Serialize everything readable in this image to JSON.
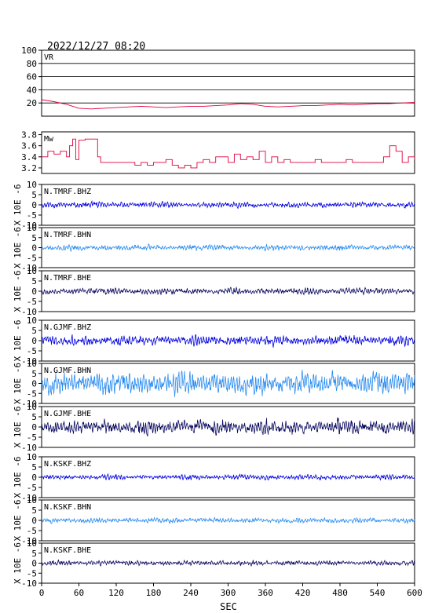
{
  "header": {
    "timestamp": "2022/12/27 08:20"
  },
  "chart_data": {
    "type": "line",
    "xlabel": "SEC",
    "xlim": [
      0,
      600
    ],
    "xticks": [
      "0",
      "60",
      "120",
      "180",
      "240",
      "300",
      "360",
      "420",
      "480",
      "540",
      "600"
    ],
    "panels": [
      {
        "label": "VR",
        "ylim": [
          0,
          100
        ],
        "yticks": [
          "100",
          "80",
          "60",
          "40",
          "20"
        ],
        "color": "#e0003c",
        "grid": true,
        "series": [
          {
            "x": [
              0,
              20,
              40,
              60,
              80,
              100,
              120,
              140,
              160,
              180,
              200,
              220,
              240,
              260,
              280,
              300,
              320,
              340,
              360,
              380,
              400,
              420,
              440,
              460,
              480,
              500,
              520,
              540,
              560,
              580,
              600
            ],
            "y": [
              25,
              22,
              18,
              12,
              11,
              12,
              13,
              14,
              15,
              14,
              13,
              14,
              15,
              15,
              16,
              17,
              19,
              18,
              15,
              14,
              15,
              16,
              16,
              17,
              18,
              17,
              18,
              19,
              19,
              20,
              21
            ]
          }
        ]
      },
      {
        "label": "Mw",
        "ylim": [
          3.1,
          3.85
        ],
        "yticks": [
          "3.8",
          "3.6",
          "3.4",
          "3.2"
        ],
        "color": "#e0003c",
        "grid": false,
        "series": [
          {
            "x": [
              0,
              10,
              20,
              30,
              40,
              45,
              50,
              55,
              60,
              70,
              80,
              90,
              95,
              100,
              110,
              120,
              125,
              130,
              140,
              150,
              160,
              170,
              180,
              190,
              200,
              210,
              220,
              230,
              240,
              250,
              260,
              270,
              280,
              290,
              300,
              310,
              320,
              330,
              340,
              350,
              360,
              370,
              380,
              390,
              400,
              410,
              420,
              430,
              440,
              450,
              460,
              470,
              480,
              490,
              500,
              510,
              520,
              530,
              540,
              550,
              560,
              570,
              580,
              590,
              600
            ],
            "y": [
              3.4,
              3.5,
              3.45,
              3.5,
              3.4,
              3.6,
              3.72,
              3.35,
              3.7,
              3.72,
              3.72,
              3.4,
              3.3,
              3.3,
              3.3,
              3.3,
              3.3,
              3.3,
              3.3,
              3.25,
              3.3,
              3.25,
              3.3,
              3.3,
              3.35,
              3.25,
              3.2,
              3.25,
              3.2,
              3.3,
              3.35,
              3.3,
              3.4,
              3.4,
              3.3,
              3.45,
              3.35,
              3.4,
              3.35,
              3.5,
              3.3,
              3.4,
              3.3,
              3.35,
              3.3,
              3.3,
              3.3,
              3.3,
              3.35,
              3.3,
              3.3,
              3.3,
              3.3,
              3.35,
              3.3,
              3.3,
              3.3,
              3.3,
              3.3,
              3.4,
              3.6,
              3.5,
              3.3,
              3.4,
              3.35
            ]
          }
        ]
      },
      {
        "label": "N.TMRF.BHZ",
        "ylim": [
          -10,
          10
        ],
        "yticks": [
          "10",
          "5",
          "0",
          "-5",
          "-10"
        ],
        "ylabel": "X 10E -6",
        "color": "#0000e0",
        "amplitude": 1.0,
        "seed": 11
      },
      {
        "label": "N.TMRF.BHN",
        "ylim": [
          -10,
          10
        ],
        "yticks": [
          "10",
          "5",
          "0",
          "-5",
          "-10"
        ],
        "ylabel": "X 10E -6",
        "color": "#2a8cf0",
        "amplitude": 1.0,
        "seed": 23
      },
      {
        "label": "N.TMRF.BHE",
        "ylim": [
          -10,
          10
        ],
        "yticks": [
          "10",
          "5",
          "0",
          "-5",
          "-10"
        ],
        "ylabel": "X 10E -6",
        "color": "#0a0a60",
        "amplitude": 1.1,
        "seed": 37
      },
      {
        "label": "N.GJMF.BHZ",
        "ylim": [
          -10,
          10
        ],
        "yticks": [
          "10",
          "5",
          "0",
          "-5",
          "-10"
        ],
        "ylabel": "X 10E -6",
        "color": "#0000e0",
        "amplitude": 1.8,
        "seed": 41
      },
      {
        "label": "N.GJMF.BHN",
        "ylim": [
          -10,
          10
        ],
        "yticks": [
          "10",
          "5",
          "0",
          "-5",
          "-10"
        ],
        "ylabel": "X 10E -6",
        "color": "#2a8cf0",
        "amplitude": 4.0,
        "seed": 53
      },
      {
        "label": "N.GJMF.BHE",
        "ylim": [
          -10,
          10
        ],
        "yticks": [
          "10",
          "5",
          "0",
          "-5",
          "-10"
        ],
        "ylabel": "X 10E -6",
        "color": "#0a0a60",
        "amplitude": 2.5,
        "seed": 67
      },
      {
        "label": "N.KSKF.BHZ",
        "ylim": [
          -10,
          10
        ],
        "yticks": [
          "10",
          "5",
          "0",
          "-5",
          "-10"
        ],
        "ylabel": "X 10E -6",
        "color": "#0000e0",
        "amplitude": 0.9,
        "seed": 71
      },
      {
        "label": "N.KSKF.BHN",
        "ylim": [
          -10,
          10
        ],
        "yticks": [
          "10",
          "5",
          "0",
          "-5",
          "-10"
        ],
        "ylabel": "X 10E -6",
        "color": "#2a8cf0",
        "amplitude": 0.9,
        "seed": 83
      },
      {
        "label": "N.KSKF.BHE",
        "ylim": [
          -10,
          10
        ],
        "yticks": [
          "10",
          "5",
          "0",
          "-5",
          "-10"
        ],
        "ylabel": "X 10E -6",
        "color": "#0a0a60",
        "amplitude": 0.9,
        "seed": 97
      }
    ]
  }
}
